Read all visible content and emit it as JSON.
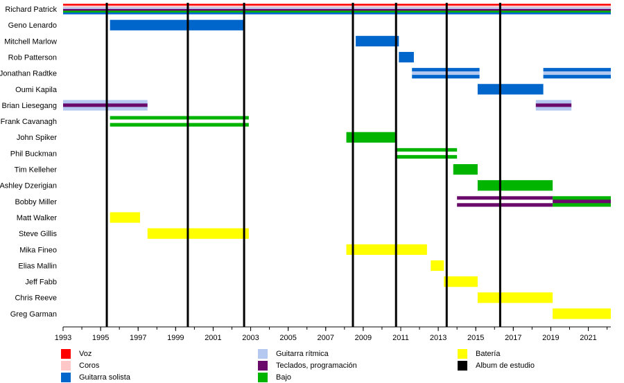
{
  "chart_data": {
    "type": "timeline",
    "x_range": [
      1993,
      2022.2
    ],
    "x_ticks": [
      1993,
      1995,
      1997,
      1999,
      2001,
      2003,
      2005,
      2007,
      2009,
      2011,
      2013,
      2015,
      2017,
      2019,
      2021
    ],
    "roles": {
      "voz": "#ff0000",
      "coros": "#ffc8c8",
      "guitarra_solista": "#0066cc",
      "guitarra_ritmica": "#b4c8f0",
      "teclados": "#6a0a6a",
      "bajo": "#00b400",
      "bateria": "#ffff00",
      "album": "#000000"
    },
    "album_years": [
      1995.33,
      1999.65,
      2002.65,
      2008.45,
      2010.75,
      2013.45,
      2016.3
    ],
    "members": [
      {
        "name": "Richard Patrick",
        "periods": [
          {
            "start": 1993,
            "end": 2022.2,
            "roles": [
              "voz",
              "coros",
              "guitarra_ritmica",
              "teclados",
              "bajo",
              "guitarra_solista"
            ]
          }
        ]
      },
      {
        "name": "Geno Lenardo",
        "periods": [
          {
            "start": 1995.5,
            "end": 2002.65,
            "roles": [
              "guitarra_solista"
            ]
          }
        ]
      },
      {
        "name": "Mitchell Marlow",
        "periods": [
          {
            "start": 2008.6,
            "end": 2010.9,
            "roles": [
              "guitarra_solista"
            ]
          }
        ]
      },
      {
        "name": "Rob Patterson",
        "periods": [
          {
            "start": 2010.9,
            "end": 2011.7,
            "roles": [
              "guitarra_solista"
            ]
          }
        ]
      },
      {
        "name": "Jonathan Radtke",
        "periods": [
          {
            "start": 2011.6,
            "end": 2015.2,
            "roles": [
              "guitarra_solista",
              "guitarra_ritmica",
              "guitarra_solista"
            ]
          },
          {
            "start": 2018.6,
            "end": 2022.2,
            "roles": [
              "guitarra_solista",
              "guitarra_ritmica",
              "guitarra_solista"
            ]
          }
        ]
      },
      {
        "name": "Oumi Kapila",
        "periods": [
          {
            "start": 2015.1,
            "end": 2018.6,
            "roles": [
              "guitarra_solista"
            ]
          }
        ]
      },
      {
        "name": "Brian Liesegang",
        "periods": [
          {
            "start": 1993,
            "end": 1997.5,
            "roles": [
              "guitarra_ritmica",
              "teclados",
              "guitarra_ritmica"
            ]
          },
          {
            "start": 2018.2,
            "end": 2020.1,
            "roles": [
              "guitarra_ritmica",
              "teclados",
              "guitarra_ritmica"
            ]
          }
        ]
      },
      {
        "name": "Frank Cavanagh",
        "periods": [
          {
            "start": 1995.5,
            "end": 2002.9,
            "roles": [
              "bajo",
              "white",
              "bajo"
            ]
          }
        ]
      },
      {
        "name": "John Spiker",
        "periods": [
          {
            "start": 2008.1,
            "end": 2010.7,
            "roles": [
              "bajo"
            ]
          }
        ]
      },
      {
        "name": "Phil Buckman",
        "periods": [
          {
            "start": 2010.7,
            "end": 2014.0,
            "roles": [
              "bajo",
              "white",
              "bajo"
            ]
          }
        ]
      },
      {
        "name": "Tim Kelleher",
        "periods": [
          {
            "start": 2013.8,
            "end": 2015.1,
            "roles": [
              "bajo"
            ]
          }
        ]
      },
      {
        "name": "Ashley Dzerigian",
        "periods": [
          {
            "start": 2015.1,
            "end": 2019.1,
            "roles": [
              "bajo"
            ]
          }
        ]
      },
      {
        "name": "Bobby Miller",
        "periods": [
          {
            "start": 2014.0,
            "end": 2019.1,
            "roles": [
              "teclados",
              "white",
              "teclados"
            ]
          },
          {
            "start": 2019.1,
            "end": 2022.2,
            "roles": [
              "bajo",
              "teclados",
              "bajo"
            ]
          }
        ]
      },
      {
        "name": "Matt Walker",
        "periods": [
          {
            "start": 1995.5,
            "end": 1997.1,
            "roles": [
              "bateria"
            ]
          }
        ]
      },
      {
        "name": "Steve Gillis",
        "periods": [
          {
            "start": 1997.5,
            "end": 2002.9,
            "roles": [
              "bateria"
            ]
          }
        ]
      },
      {
        "name": "Mika Fineo",
        "periods": [
          {
            "start": 2008.1,
            "end": 2012.4,
            "roles": [
              "bateria"
            ]
          }
        ]
      },
      {
        "name": "Elias Mallin",
        "periods": [
          {
            "start": 2012.6,
            "end": 2013.3,
            "roles": [
              "bateria"
            ]
          }
        ]
      },
      {
        "name": "Jeff Fabb",
        "periods": [
          {
            "start": 2013.3,
            "end": 2015.1,
            "roles": [
              "bateria"
            ]
          }
        ]
      },
      {
        "name": "Chris Reeve",
        "periods": [
          {
            "start": 2015.1,
            "end": 2019.1,
            "roles": [
              "bateria"
            ]
          }
        ]
      },
      {
        "name": "Greg Garman",
        "periods": [
          {
            "start": 2019.1,
            "end": 2022.2,
            "roles": [
              "bateria"
            ]
          }
        ]
      }
    ]
  },
  "legend": [
    {
      "label": "Voz",
      "color": "#ff0000",
      "col": 0,
      "row": 0
    },
    {
      "label": "Coros",
      "color": "#ffc8c8",
      "col": 0,
      "row": 1
    },
    {
      "label": "Guitarra solista",
      "color": "#0066cc",
      "col": 0,
      "row": 2
    },
    {
      "label": "Guitarra rítmica",
      "color": "#b4c8f0",
      "col": 1,
      "row": 0
    },
    {
      "label": "Teclados, programación",
      "color": "#6a0a6a",
      "col": 1,
      "row": 1
    },
    {
      "label": "Bajo",
      "color": "#00b400",
      "col": 1,
      "row": 2
    },
    {
      "label": "Batería",
      "color": "#ffff00",
      "col": 2,
      "row": 0
    },
    {
      "label": "Album de estudio",
      "color": "#000000",
      "col": 2,
      "row": 1
    }
  ]
}
